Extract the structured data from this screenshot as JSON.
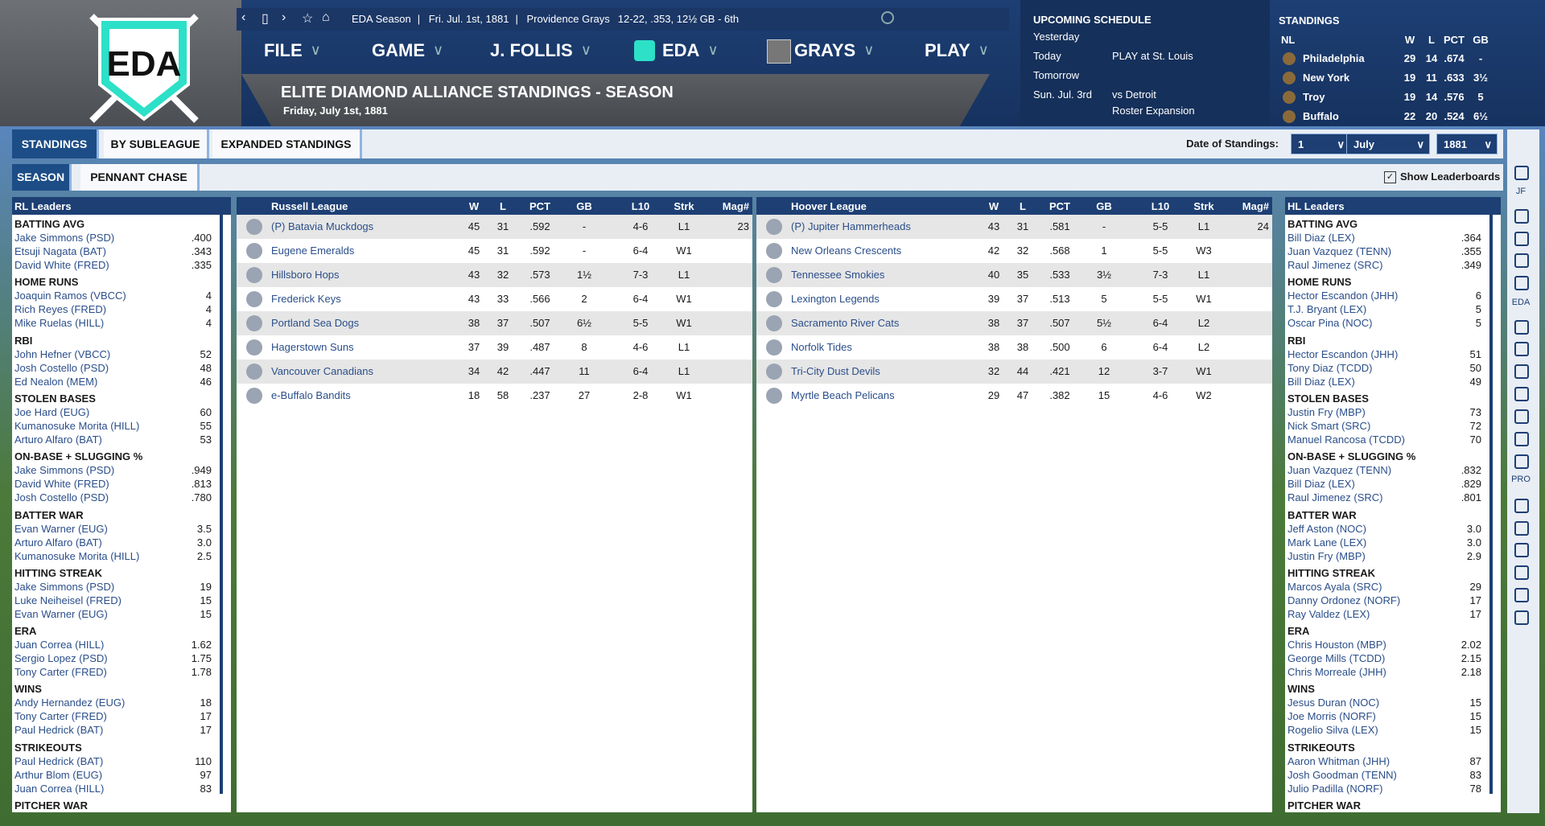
{
  "logo": "EDA",
  "topbar": {
    "context": "EDA Season",
    "date": "Fri. Jul. 1st, 1881",
    "team": "Providence Grays",
    "record": "12-22, .353, 12½ GB - 6th"
  },
  "menu": [
    "FILE",
    "GAME",
    "J. FOLLIS",
    "EDA",
    "GRAYS",
    "PLAY"
  ],
  "page": {
    "title": "ELITE DIAMOND ALLIANCE STANDINGS - SEASON",
    "subtitle": "Friday, July 1st, 1881"
  },
  "schedule": {
    "title": "UPCOMING SCHEDULE",
    "rows": [
      {
        "day": "Yesterday"
      },
      {
        "day": "Today",
        "events": [
          "PLAY at St. Louis"
        ]
      },
      {
        "day": "Tomorrow"
      },
      {
        "day": "Sun. Jul. 3rd",
        "events": [
          "vs Detroit",
          "Roster Expansion"
        ]
      }
    ]
  },
  "mini_standings": {
    "title": "STANDINGS",
    "header": [
      "NL",
      "W",
      "L",
      "PCT",
      "GB"
    ],
    "rows": [
      [
        "Philadelphia",
        29,
        14,
        ".674",
        "-"
      ],
      [
        "New York",
        19,
        11,
        ".633",
        "3½"
      ],
      [
        "Troy",
        19,
        14,
        ".576",
        5
      ],
      [
        "Buffalo",
        22,
        20,
        ".524",
        "6½"
      ]
    ]
  },
  "tabs": [
    "STANDINGS",
    "BY SUBLEAGUE",
    "EXPANDED STANDINGS"
  ],
  "subtabs": [
    "SEASON",
    "PENNANT CHASE"
  ],
  "date_of_standings": {
    "label": "Date of Standings:",
    "day": "1",
    "month": "July",
    "year": "1881"
  },
  "show_leaderboards": "Show Leaderboards",
  "sidebar_labels": [
    "JF",
    "EDA",
    "PRO"
  ],
  "leagues": [
    {
      "header": [
        "Russell League",
        "W",
        "L",
        "PCT",
        "GB",
        "L10",
        "Strk",
        "Mag#"
      ],
      "rows": [
        [
          "(P) Batavia Muckdogs",
          45,
          31,
          ".592",
          "-",
          "4-6",
          "L1",
          23
        ],
        [
          "Eugene Emeralds",
          45,
          31,
          ".592",
          "-",
          "6-4",
          "W1"
        ],
        [
          "Hillsboro Hops",
          43,
          32,
          ".573",
          "1½",
          "7-3",
          "L1"
        ],
        [
          "Frederick Keys",
          43,
          33,
          ".566",
          2,
          "6-4",
          "W1"
        ],
        [
          "Portland Sea Dogs",
          38,
          37,
          ".507",
          "6½",
          "5-5",
          "W1"
        ],
        [
          "Hagerstown Suns",
          37,
          39,
          ".487",
          8,
          "4-6",
          "L1"
        ],
        [
          "Vancouver Canadians",
          34,
          42,
          ".447",
          11,
          "6-4",
          "L1"
        ],
        [
          "e-Buffalo Bandits",
          18,
          58,
          ".237",
          27,
          "2-8",
          "W1"
        ]
      ]
    },
    {
      "header": [
        "Hoover League",
        "W",
        "L",
        "PCT",
        "GB",
        "L10",
        "Strk",
        "Mag#"
      ],
      "rows": [
        [
          "(P) Jupiter Hammerheads",
          43,
          31,
          ".581",
          "-",
          "5-5",
          "L1",
          24
        ],
        [
          "New Orleans Crescents",
          42,
          32,
          ".568",
          1,
          "5-5",
          "W3"
        ],
        [
          "Tennessee Smokies",
          40,
          35,
          ".533",
          "3½",
          "7-3",
          "L1"
        ],
        [
          "Lexington Legends",
          39,
          37,
          ".513",
          5,
          "5-5",
          "W1"
        ],
        [
          "Sacramento River Cats",
          38,
          37,
          ".507",
          "5½",
          "6-4",
          "L2"
        ],
        [
          "Norfolk Tides",
          38,
          38,
          ".500",
          6,
          "6-4",
          "L2"
        ],
        [
          "Tri-City Dust Devils",
          32,
          44,
          ".421",
          12,
          "3-7",
          "W1"
        ],
        [
          "Myrtle Beach Pelicans",
          29,
          47,
          ".382",
          15,
          "4-6",
          "W2"
        ]
      ]
    }
  ],
  "leaders": [
    {
      "title": "RL Leaders",
      "categories": [
        {
          "name": "BATTING AVG",
          "entries": [
            [
              "Jake Simmons (PSD)",
              ".400"
            ],
            [
              "Etsuji Nagata (BAT)",
              ".343"
            ],
            [
              "David White (FRED)",
              ".335"
            ]
          ]
        },
        {
          "name": "HOME RUNS",
          "entries": [
            [
              "Joaquin Ramos (VBCC)",
              4
            ],
            [
              "Rich Reyes (FRED)",
              4
            ],
            [
              "Mike Ruelas (HILL)",
              4
            ]
          ]
        },
        {
          "name": "RBI",
          "entries": [
            [
              "John Hefner (VBCC)",
              52
            ],
            [
              "Josh Costello (PSD)",
              48
            ],
            [
              "Ed Nealon (MEM)",
              46
            ]
          ]
        },
        {
          "name": "STOLEN BASES",
          "entries": [
            [
              "Joe Hard (EUG)",
              60
            ],
            [
              "Kumanosuke Morita (HILL)",
              55
            ],
            [
              "Arturo Alfaro (BAT)",
              53
            ]
          ]
        },
        {
          "name": "ON-BASE + SLUGGING %",
          "entries": [
            [
              "Jake Simmons (PSD)",
              ".949"
            ],
            [
              "David White (FRED)",
              ".813"
            ],
            [
              "Josh Costello (PSD)",
              ".780"
            ]
          ]
        },
        {
          "name": "BATTER WAR",
          "entries": [
            [
              "Evan Warner (EUG)",
              3.5
            ],
            [
              "Arturo Alfaro (BAT)",
              "3.0"
            ],
            [
              "Kumanosuke Morita (HILL)",
              2.5
            ]
          ]
        },
        {
          "name": "HITTING STREAK",
          "entries": [
            [
              "Jake Simmons (PSD)",
              19
            ],
            [
              "Luke Neiheisel (FRED)",
              15
            ],
            [
              "Evan Warner (EUG)",
              15
            ]
          ]
        },
        {
          "name": "ERA",
          "entries": [
            [
              "Juan Correa (HILL)",
              1.62
            ],
            [
              "Sergio Lopez (PSD)",
              1.75
            ],
            [
              "Tony Carter (FRED)",
              1.78
            ]
          ]
        },
        {
          "name": "WINS",
          "entries": [
            [
              "Andy Hernandez (EUG)",
              18
            ],
            [
              "Tony Carter (FRED)",
              17
            ],
            [
              "Paul Hedrick (BAT)",
              17
            ]
          ]
        },
        {
          "name": "STRIKEOUTS",
          "entries": [
            [
              "Paul Hedrick (BAT)",
              110
            ],
            [
              "Arthur Blom (EUG)",
              97
            ],
            [
              "Juan Correa (HILL)",
              83
            ]
          ]
        },
        {
          "name": "PITCHER WAR",
          "entries": []
        }
      ]
    },
    {
      "title": "HL Leaders",
      "categories": [
        {
          "name": "BATTING AVG",
          "entries": [
            [
              "Bill Diaz (LEX)",
              ".364"
            ],
            [
              "Juan Vazquez (TENN)",
              ".355"
            ],
            [
              "Raul Jimenez (SRC)",
              ".349"
            ]
          ]
        },
        {
          "name": "HOME RUNS",
          "entries": [
            [
              "Hector Escandon (JHH)",
              6
            ],
            [
              "T.J. Bryant (LEX)",
              5
            ],
            [
              "Oscar Pina (NOC)",
              5
            ]
          ]
        },
        {
          "name": "RBI",
          "entries": [
            [
              "Hector Escandon (JHH)",
              51
            ],
            [
              "Tony Diaz (TCDD)",
              50
            ],
            [
              "Bill Diaz (LEX)",
              49
            ]
          ]
        },
        {
          "name": "STOLEN BASES",
          "entries": [
            [
              "Justin Fry (MBP)",
              73
            ],
            [
              "Nick Smart (SRC)",
              72
            ],
            [
              "Manuel Rancosa (TCDD)",
              70
            ]
          ]
        },
        {
          "name": "ON-BASE + SLUGGING %",
          "entries": [
            [
              "Juan Vazquez (TENN)",
              ".832"
            ],
            [
              "Bill Diaz (LEX)",
              ".829"
            ],
            [
              "Raul Jimenez (SRC)",
              ".801"
            ]
          ]
        },
        {
          "name": "BATTER WAR",
          "entries": [
            [
              "Jeff Aston (NOC)",
              "3.0"
            ],
            [
              "Mark Lane (LEX)",
              "3.0"
            ],
            [
              "Justin Fry (MBP)",
              2.9
            ]
          ]
        },
        {
          "name": "HITTING STREAK",
          "entries": [
            [
              "Marcos Ayala (SRC)",
              29
            ],
            [
              "Danny Ordonez (NORF)",
              17
            ],
            [
              "Ray Valdez (LEX)",
              17
            ]
          ]
        },
        {
          "name": "ERA",
          "entries": [
            [
              "Chris Houston (MBP)",
              2.02
            ],
            [
              "George Mills (TCDD)",
              2.15
            ],
            [
              "Chris Morreale (JHH)",
              2.18
            ]
          ]
        },
        {
          "name": "WINS",
          "entries": [
            [
              "Jesus Duran (NOC)",
              15
            ],
            [
              "Joe Morris (NORF)",
              15
            ],
            [
              "Rogelio Silva (LEX)",
              15
            ]
          ]
        },
        {
          "name": "STRIKEOUTS",
          "entries": [
            [
              "Aaron Whitman (JHH)",
              87
            ],
            [
              "Josh Goodman (TENN)",
              83
            ],
            [
              "Julio Padilla (NORF)",
              78
            ]
          ]
        },
        {
          "name": "PITCHER WAR",
          "entries": []
        }
      ]
    }
  ]
}
